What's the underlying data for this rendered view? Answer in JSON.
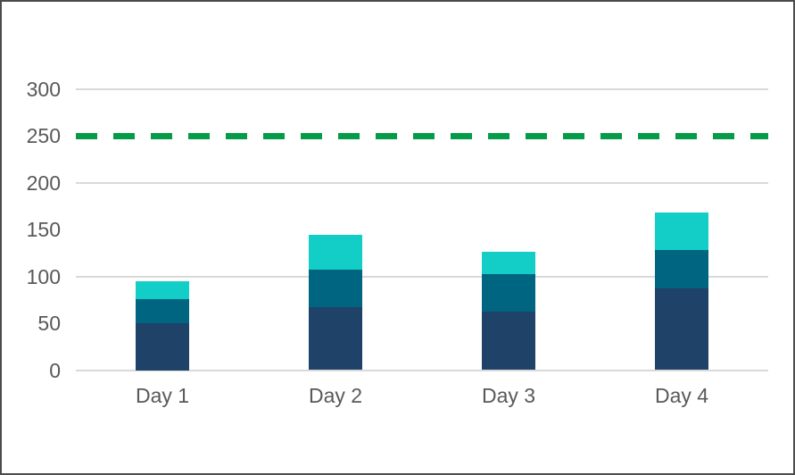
{
  "chart_data": {
    "type": "bar",
    "stacked": true,
    "title": "",
    "xlabel": "",
    "ylabel": "",
    "categories": [
      "Day 1",
      "Day 2",
      "Day 3",
      "Day 4"
    ],
    "series": [
      {
        "name": "navy-bottom-segment",
        "color": "#1E4268",
        "values": [
          50,
          67,
          62,
          87
        ]
      },
      {
        "name": "teal-middle-segment",
        "color": "#006580",
        "values": [
          26,
          40,
          40,
          41
        ]
      },
      {
        "name": "cyan-top-segment",
        "color": "#12CEC7",
        "values": [
          19,
          37,
          24,
          40
        ]
      }
    ],
    "target_line": {
      "value": 250,
      "color": "#049C47",
      "style": "dashed"
    },
    "ylim": [
      0,
      340
    ],
    "ytick_labels": [
      "300",
      "250",
      "200",
      "150",
      "100",
      "50",
      "0"
    ],
    "ytick_values": [
      300,
      250,
      200,
      150,
      100,
      50,
      0
    ],
    "gridline_values": [
      300,
      200,
      100,
      0
    ],
    "grid": true,
    "legend_position": "none",
    "colors": {
      "gridline": "#D9D9D9",
      "axis_label": "#595959",
      "frame_border": "#4C4C4C",
      "background": "#FFFFFF"
    }
  }
}
